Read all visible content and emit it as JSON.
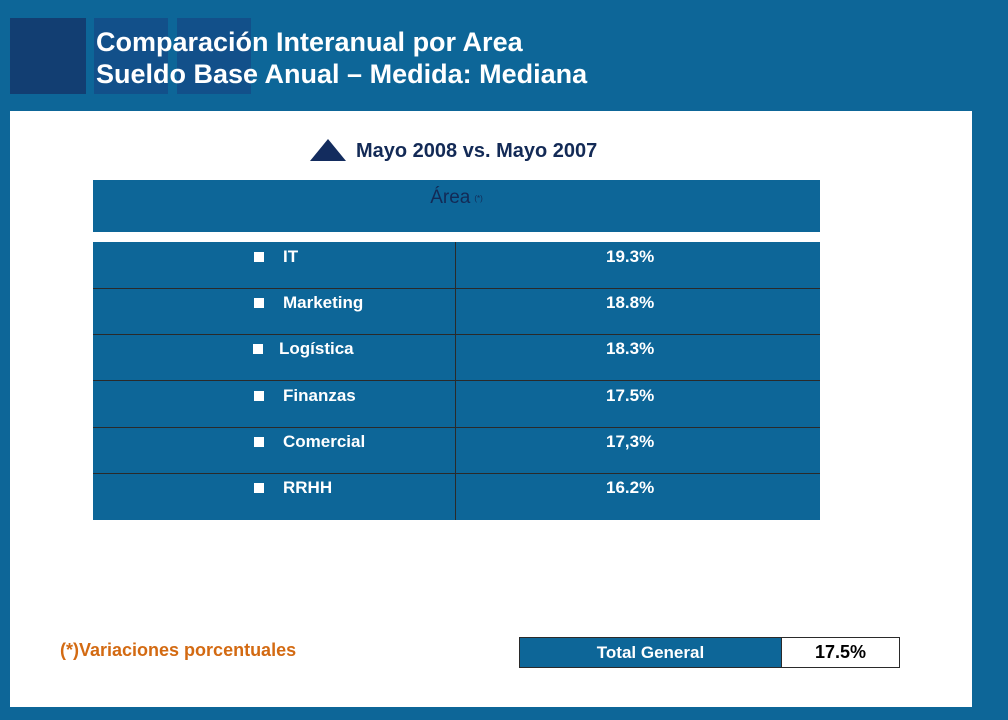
{
  "header": {
    "title_line1": "Comparación Interanual por Area",
    "title_line2": "Sueldo Base Anual – Medida: Mediana"
  },
  "comparison": {
    "label": "Mayo 2008 vs. Mayo 2007",
    "icon": "triangle-up-icon"
  },
  "table": {
    "header_label": "Área",
    "header_note": "(*)",
    "rows": [
      {
        "area": "IT",
        "value": "19.3%"
      },
      {
        "area": "Marketing",
        "value": "18.8%"
      },
      {
        "area": "Logística",
        "value": "18.3%"
      },
      {
        "area": "Finanzas",
        "value": "17.5%"
      },
      {
        "area": "Comercial",
        "value": "17,3%"
      },
      {
        "area": "RRHH",
        "value": "16.2%"
      }
    ]
  },
  "footnote": "(*)Variaciones porcentuales",
  "total": {
    "label": "Total General",
    "value": "17.5%"
  },
  "colors": {
    "background": "#0d6698",
    "panel": "#ffffff",
    "title_text": "#ffffff",
    "subtitle_text": "#132a56",
    "footnote_text": "#d36a12"
  }
}
